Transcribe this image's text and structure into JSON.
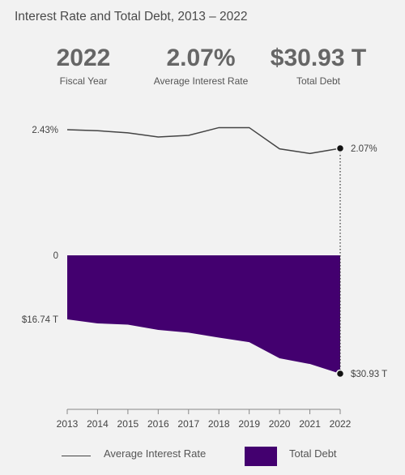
{
  "title": "Interest Rate and Total Debt, 2013 – 2022",
  "kpis": {
    "fiscal_year": {
      "value": "2022",
      "label": "Fiscal Year"
    },
    "avg_rate": {
      "value": "2.07%",
      "label": "Average Interest Rate"
    },
    "total_debt": {
      "value": "$30.93 T",
      "label": "Total Debt"
    }
  },
  "legend": {
    "rate_label": "Average Interest Rate",
    "debt_label": "Total Debt"
  },
  "colors": {
    "debt_fill": "#43006f",
    "rate_line": "#444444",
    "axis": "#888888"
  },
  "chart_data": {
    "type": "line",
    "categories": [
      "2013",
      "2014",
      "2015",
      "2016",
      "2017",
      "2018",
      "2019",
      "2020",
      "2021",
      "2022"
    ],
    "series": [
      {
        "name": "Average Interest Rate",
        "type": "line",
        "unit": "%",
        "values": [
          2.43,
          2.41,
          2.37,
          2.29,
          2.32,
          2.47,
          2.47,
          2.06,
          1.97,
          2.07
        ]
      },
      {
        "name": "Total Debt",
        "type": "area",
        "unit": "T",
        "values": [
          16.74,
          17.8,
          18.1,
          19.5,
          20.2,
          21.5,
          22.7,
          26.9,
          28.4,
          30.93
        ]
      }
    ],
    "annotations": {
      "rate_start": "2.43%",
      "rate_end": "2.07%",
      "debt_zero": "0",
      "debt_start": "$16.74 T",
      "debt_end": "$30.93 T"
    },
    "grid": false,
    "legend_position": "bottom"
  }
}
